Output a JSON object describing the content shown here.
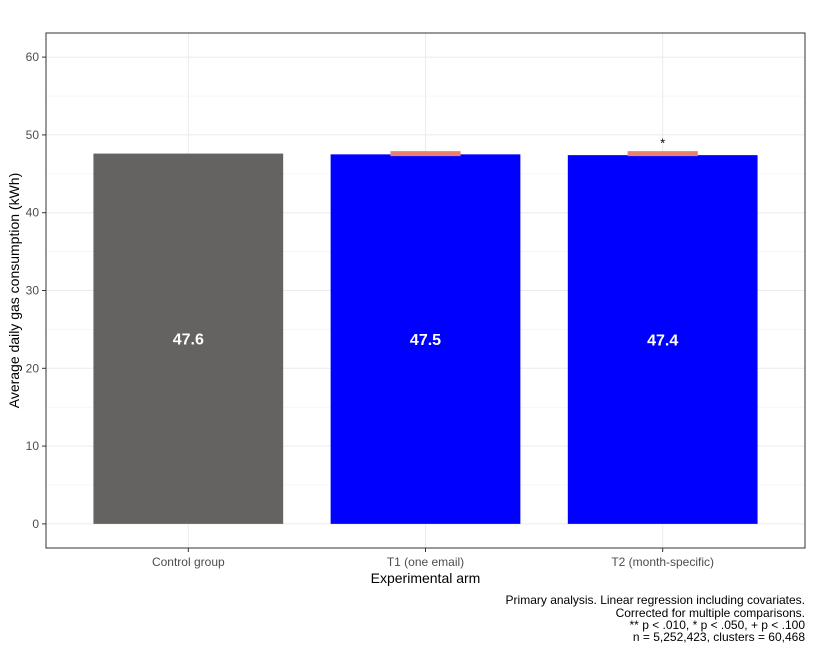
{
  "chart_data": {
    "type": "bar",
    "categories": [
      "Control group",
      "T1 (one email)",
      "T2 (month-specific)"
    ],
    "values": [
      47.6,
      47.5,
      47.4
    ],
    "value_labels": [
      "47.6",
      "47.5",
      "47.4"
    ],
    "bar_colors": [
      "#656262",
      "#0000ff",
      "#0000ff"
    ],
    "reference_marks": [
      {
        "category": "T1 (one email)",
        "y": 47.6,
        "significance": ""
      },
      {
        "category": "T2 (month-specific)",
        "y": 47.6,
        "significance": "*"
      }
    ],
    "reference_color": "#e88070",
    "xlabel": "Experimental arm",
    "ylabel": "Average daily gas consumption (kWh)",
    "ylim": [
      -3.1,
      63.1
    ],
    "yticks": [
      0,
      10,
      20,
      30,
      40,
      50,
      60
    ],
    "grid": true
  },
  "caption": [
    "Primary analysis. Linear regression including covariates.",
    "Corrected for multiple comparisons.",
    "** p < .010, * p < .050, + p < .100",
    "n = 5,252,423, clusters = 60,468"
  ]
}
